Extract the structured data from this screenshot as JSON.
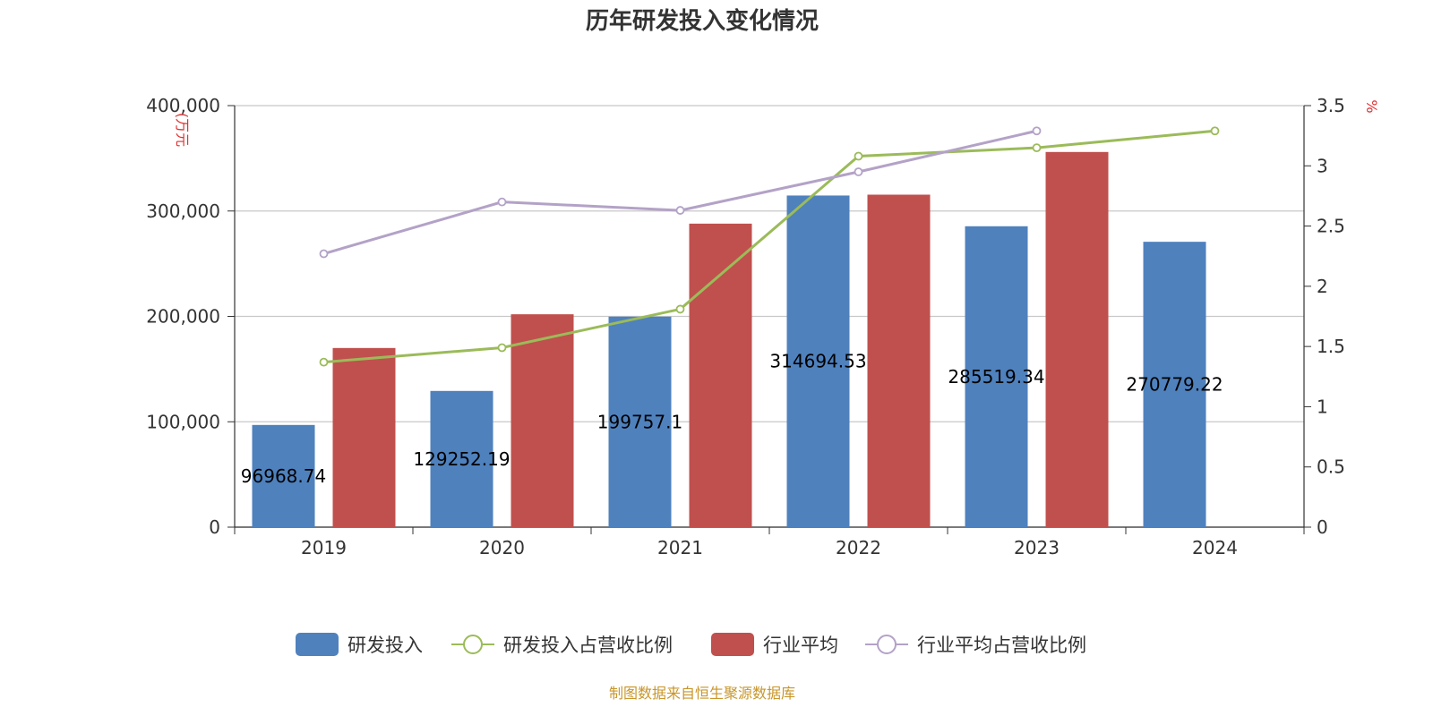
{
  "chart_data": {
    "type": "bar",
    "title": "历年研发投入变化情况",
    "left_unit": "(万元",
    "right_unit": "%",
    "categories": [
      "2019",
      "2020",
      "2021",
      "2022",
      "2023",
      "2024"
    ],
    "left_axis": {
      "ylim": [
        0,
        400000
      ],
      "ticks": [
        "0",
        "100,000",
        "200,000",
        "300,000",
        "400,000"
      ],
      "tick_values": [
        0,
        100000,
        200000,
        300000,
        400000
      ]
    },
    "right_axis": {
      "ylim": [
        0,
        3.5
      ],
      "ticks": [
        "0",
        "0.5",
        "1",
        "1.5",
        "2",
        "2.5",
        "3",
        "3.5"
      ],
      "tick_values": [
        0,
        0.5,
        1,
        1.5,
        2,
        2.5,
        3,
        3.5
      ]
    },
    "grid": true,
    "legend_position": "bottom",
    "series": [
      {
        "name": "研发投入",
        "kind": "bar",
        "axis": "left",
        "color": "#4f81bd",
        "values": [
          96968.74,
          129252.19,
          199757.1,
          314694.53,
          285519.34,
          270779.22
        ],
        "labels": [
          "96968.74",
          "129252.19",
          "199757.1",
          "314694.53",
          "285519.34",
          "270779.22"
        ]
      },
      {
        "name": "研发投入占营收比例",
        "kind": "line",
        "axis": "right",
        "color": "#9bbb59",
        "values": [
          1.37,
          1.49,
          1.81,
          3.08,
          3.15,
          3.29
        ]
      },
      {
        "name": "行业平均",
        "kind": "bar",
        "axis": "left",
        "color": "#c0504d",
        "values": [
          170000,
          202000,
          288000,
          315500,
          356000,
          null
        ]
      },
      {
        "name": "行业平均占营收比例",
        "kind": "line",
        "axis": "right",
        "color": "#b3a2c7",
        "values": [
          2.27,
          2.7,
          2.63,
          2.95,
          3.29,
          null
        ]
      }
    ]
  },
  "source": "制图数据来自恒生聚源数据库"
}
